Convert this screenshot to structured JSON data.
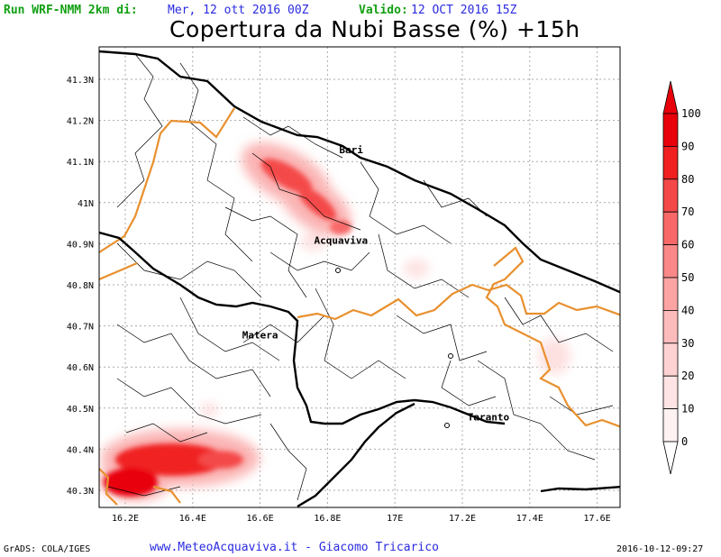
{
  "header": {
    "run_label": "Run WRF-NMM 2km di:",
    "init_time": "Mer, 12 ott 2016 00Z",
    "valid_label": "Valido:",
    "valid_time": "12 OCT 2016 15Z"
  },
  "title": "Copertura da Nubi Basse (%) +15h",
  "axes": {
    "lat_ticks": [
      "41.3N",
      "41.2N",
      "41.1N",
      "41N",
      "40.9N",
      "40.8N",
      "40.7N",
      "40.6N",
      "40.5N",
      "40.4N",
      "40.3N"
    ],
    "lon_ticks": [
      "16.2E",
      "16.4E",
      "16.6E",
      "16.8E",
      "17E",
      "17.2E",
      "17.4E",
      "17.6E"
    ]
  },
  "cities": [
    {
      "name": "Bari",
      "lon": 16.87,
      "lat": 41.12
    },
    {
      "name": "Acquaviva",
      "lon": 16.84,
      "lat": 40.9
    },
    {
      "name": "Matera",
      "lon": 16.6,
      "lat": 40.67
    },
    {
      "name": "Taranto",
      "lon": 17.24,
      "lat": 40.47
    }
  ],
  "colorbar": {
    "labels": [
      "100",
      "90",
      "80",
      "70",
      "60",
      "50",
      "40",
      "30",
      "20",
      "10",
      "0"
    ],
    "colors": [
      "#e8000a",
      "#f02020",
      "#f44848",
      "#f86868",
      "#fa8888",
      "#fca4a4",
      "#fdbcbc",
      "#fed2d2",
      "#fee4e4",
      "#fff2f2",
      "#ffffff"
    ]
  },
  "footer": {
    "left": "GrADS: COLA/IGES",
    "center": "www.MeteoAcquaviva.it - Giacomo Tricarico",
    "right": "2016-10-12-09:27"
  }
}
